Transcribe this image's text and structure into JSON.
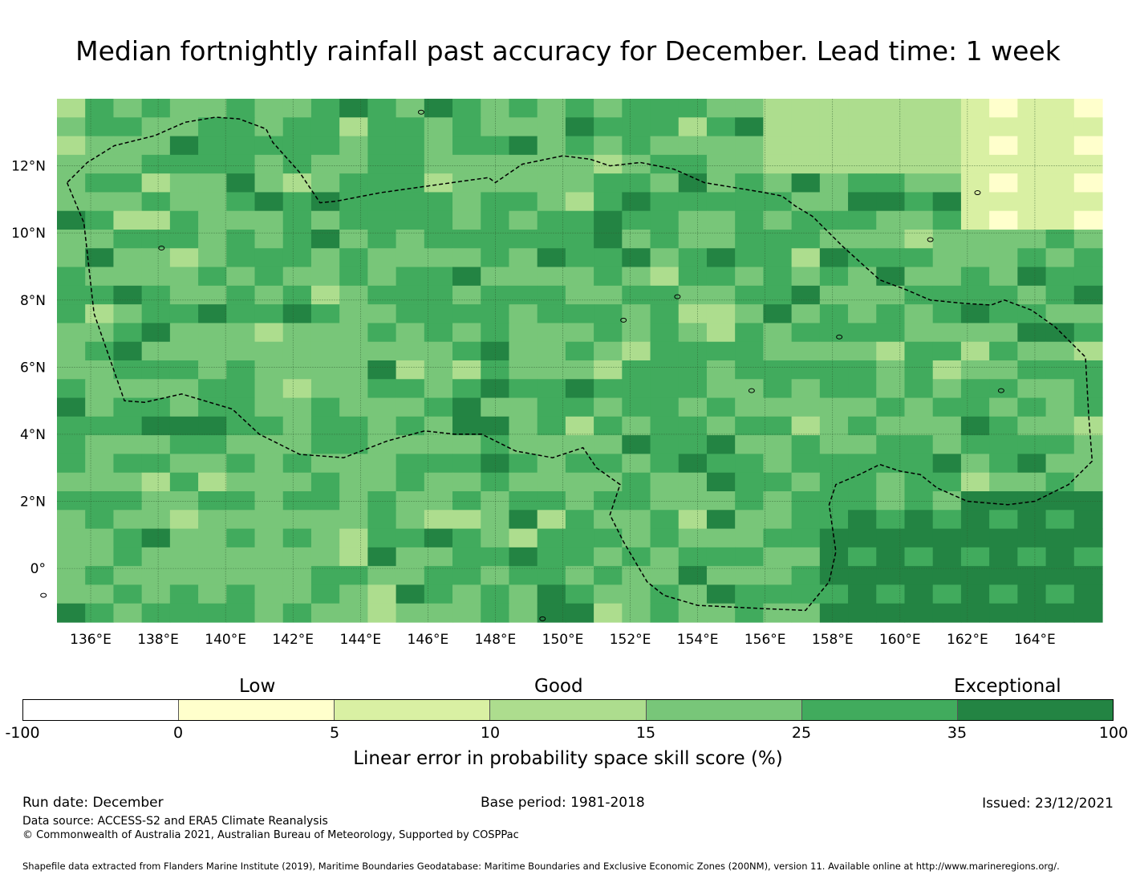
{
  "title": "Median fortnightly rainfall past accuracy for December. Lead time: 1 week",
  "map": {
    "lon_range": [
      135,
      166
    ],
    "lat_range": [
      -1.6,
      14
    ],
    "lon_ticks": [
      "136°E",
      "138°E",
      "140°E",
      "142°E",
      "144°E",
      "146°E",
      "148°E",
      "150°E",
      "152°E",
      "154°E",
      "156°E",
      "158°E",
      "160°E",
      "162°E",
      "164°E"
    ],
    "lon_tick_values": [
      136,
      138,
      140,
      142,
      144,
      146,
      148,
      150,
      152,
      154,
      156,
      158,
      160,
      162,
      164
    ],
    "lat_ticks": [
      "12°N",
      "10°N",
      "8°N",
      "6°N",
      "4°N",
      "2°N",
      "0°"
    ],
    "lat_tick_values": [
      12,
      10,
      8,
      6,
      4,
      2,
      0
    ],
    "colors": {
      "c0": "#ffffcc",
      "c5": "#d9f0a3",
      "c10": "#addd8e",
      "c15": "#78c679",
      "c25": "#41ab5d",
      "c35": "#238443"
    }
  },
  "legend": {
    "categories": [
      "Low",
      "Good",
      "Exceptional"
    ],
    "ticks": [
      "-100",
      "0",
      "5",
      "10",
      "15",
      "25",
      "35",
      "100"
    ],
    "bins": [
      {
        "from": "-100",
        "to": "0",
        "color": "#ffffff"
      },
      {
        "from": "0",
        "to": "5",
        "color": "#ffffcc"
      },
      {
        "from": "5",
        "to": "10",
        "color": "#d9f0a3"
      },
      {
        "from": "10",
        "to": "15",
        "color": "#addd8e"
      },
      {
        "from": "15",
        "to": "25",
        "color": "#78c679"
      },
      {
        "from": "25",
        "to": "35",
        "color": "#41ab5d"
      },
      {
        "from": "35",
        "to": "100",
        "color": "#238443"
      }
    ],
    "label": "Linear error in probability space skill score (%)"
  },
  "footer": {
    "run_date": "Run date: December",
    "base_period": "Base period: 1981-2018",
    "issued": "Issued: 23/12/2021",
    "data_source": "Data source: ACCESS-S2 and ERA5 Climate Reanalysis",
    "copyright": "© Commonwealth of Australia 2021, Australian Bureau of Meteorology, Supported by COSPPac",
    "shapefile": "Shapefile data extracted from Flanders Marine Institute (2019), Maritime Boundaries Geodatabase: Maritime Boundaries and Exclusive Economic Zones (200NM), version 11. Available online at http://www.marineregions.org/."
  }
}
